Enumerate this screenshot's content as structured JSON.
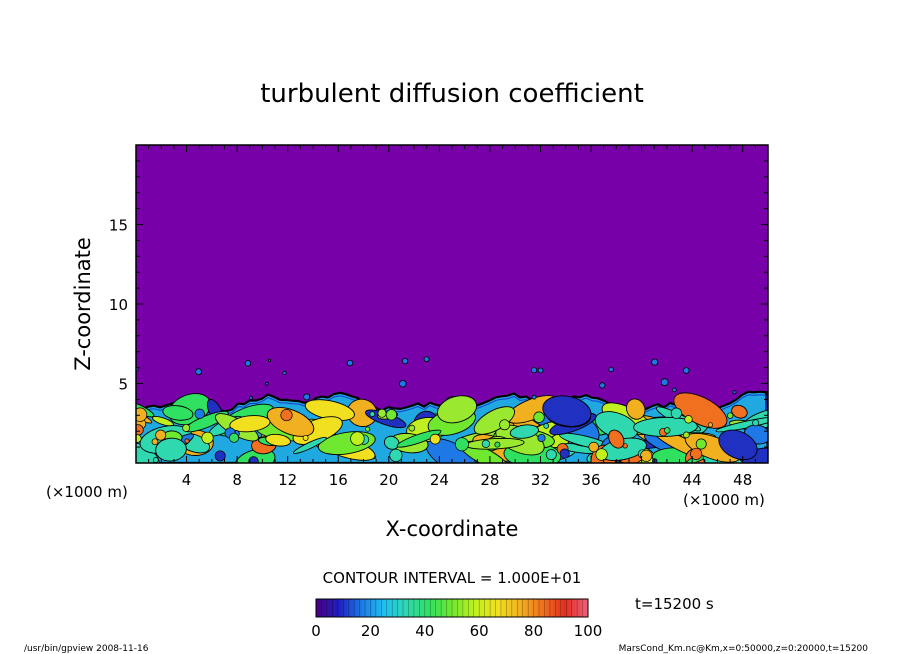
{
  "chart_data": {
    "type": "heatmap",
    "title": "turbulent diffusion coefficient",
    "xlabel": "X-coordinate",
    "ylabel": "Z-coordinate",
    "x_unit_left": "(×1000 m)",
    "x_unit_right": "(×1000 m)",
    "xlim": [
      0,
      50
    ],
    "ylim": [
      0,
      20
    ],
    "x_ticks": [
      "4",
      "8",
      "12",
      "16",
      "20",
      "24",
      "28",
      "32",
      "36",
      "40",
      "44",
      "48"
    ],
    "y_ticks": [
      "5",
      "10",
      "15"
    ],
    "contour_interval_label": "CONTOUR INTERVAL = 1.000E+01",
    "colorbar": {
      "range": [
        0,
        100
      ],
      "ticks": [
        "0",
        "20",
        "40",
        "60",
        "80",
        "100"
      ],
      "colors": [
        "#4b0082",
        "#2020c0",
        "#1e78e6",
        "#20c0f0",
        "#30d8b0",
        "#30e060",
        "#70e830",
        "#c0f020",
        "#f0e020",
        "#f0b020",
        "#f07020",
        "#e03020",
        "#f06080"
      ]
    },
    "background_color": "#7800a8",
    "boundary_layer_top_km": 3.8,
    "time_label": "t=15200 s"
  },
  "footer": {
    "left": "/usr/bin/gpview   2008-11-16",
    "right": "MarsCond_Km.nc@Km,x=0:50000,z=0:20000,t=15200"
  }
}
